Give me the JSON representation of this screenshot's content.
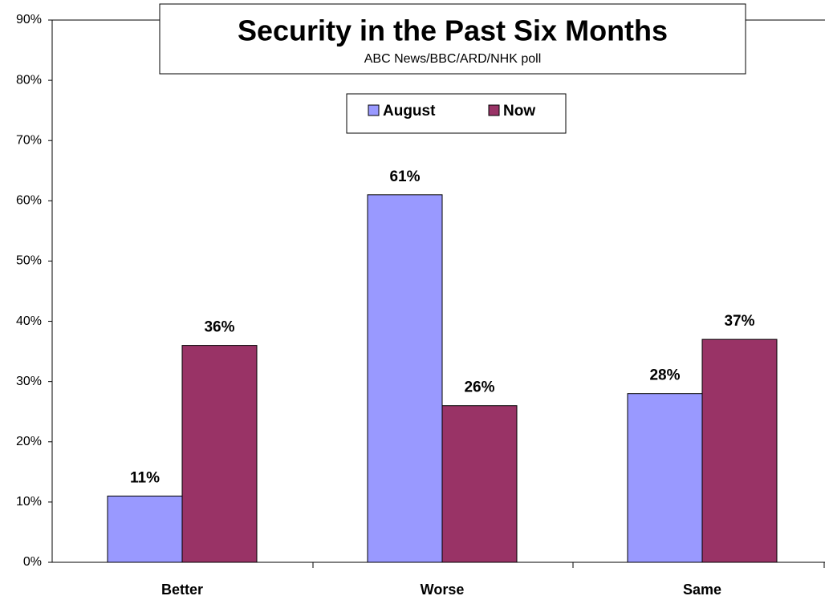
{
  "chart_data": {
    "type": "bar",
    "title": "Security in the Past Six Months",
    "subtitle": "ABC News/BBC/ARD/NHK poll",
    "categories": [
      "Better",
      "Worse",
      "Same"
    ],
    "series": [
      {
        "name": "August",
        "color": "#9999ff",
        "values": [
          11,
          61,
          28
        ],
        "value_labels": [
          "11%",
          "61%",
          "28%"
        ]
      },
      {
        "name": "Now",
        "color": "#993366",
        "values": [
          36,
          26,
          37
        ],
        "value_labels": [
          "36%",
          "26%",
          "37%"
        ]
      }
    ],
    "ylim": [
      0,
      90
    ],
    "yticks": [
      {
        "value": 0,
        "label": "0%"
      },
      {
        "value": 10,
        "label": "10%"
      },
      {
        "value": 20,
        "label": "20%"
      },
      {
        "value": 30,
        "label": "30%"
      },
      {
        "value": 40,
        "label": "40%"
      },
      {
        "value": 50,
        "label": "50%"
      },
      {
        "value": 60,
        "label": "60%"
      },
      {
        "value": 70,
        "label": "70%"
      },
      {
        "value": 80,
        "label": "80%"
      },
      {
        "value": 90,
        "label": "90%"
      }
    ],
    "grid": false
  }
}
